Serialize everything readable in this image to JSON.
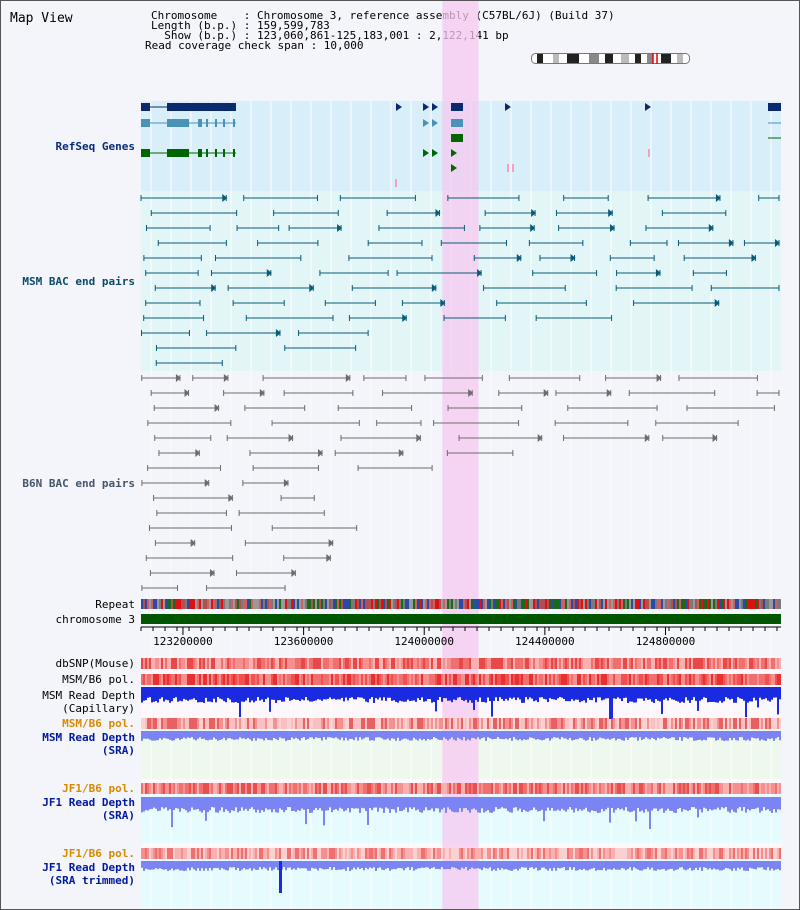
{
  "view": {
    "title": "Map View"
  },
  "info": {
    "chromosome_line": "Chromosome    : Chromosome 3, reference assembly (C57BL/6J) (Build 37)",
    "length_line": "Length (b.p.) : 159,599,783",
    "show_line": "  Show (b.p.) : 123,060,861-125,183,001 : 2,122,141 bp",
    "coverage_line": "Read coverage check span : 10,000"
  },
  "tracks": {
    "refseq": "RefSeq Genes",
    "msm_bac": "MSM BAC end pairs",
    "b6n_bac": "B6N BAC end pairs",
    "repeat": "Repeat",
    "chromosome": "chromosome 3",
    "dbsnp": "dbSNP(Mouse)",
    "msm_b6_pol": "MSM/B6 pol.",
    "msm_depth_cap_1": "MSM Read Depth",
    "msm_depth_cap_2": "(Capillary)",
    "msm_b6_pol_2": "MSM/B6 pol.",
    "msm_depth_sra_1": "MSM Read Depth",
    "msm_depth_sra_2": "(SRA)",
    "jf1_b6_pol": "JF1/B6 pol.",
    "jf1_depth_sra_1": "JF1 Read Depth",
    "jf1_depth_sra_2": "(SRA)",
    "jf1_b6_pol_2": "JF1/B6 pol.",
    "jf1_depth_trim_1": "JF1 Read Depth",
    "jf1_depth_trim_2": "(SRA trimmed)"
  },
  "axis": {
    "ticks": [
      "123200000",
      "123600000",
      "124000000",
      "124400000",
      "124800000"
    ],
    "range_start": 123060861,
    "range_end": 125183001
  },
  "highlight": {
    "start": 124060000,
    "end": 124180000,
    "color": "#f6c8f0"
  },
  "colors": {
    "refseq_bg": "#d8eef9",
    "msm_bg": "#e2f6f8",
    "b6n_bg": "#f4f4fb",
    "gene_dark": "#0b2a6e",
    "gene_mid": "#4a93b8",
    "gene_green": "#006600",
    "bac_teal": "#0b5a78",
    "bac_grey": "#6c6c6c",
    "chrom_green": "#005500",
    "depth_blue": "#1a2ae0",
    "depth_light": "#7c84f4",
    "pink_pol": "#f07a7a"
  }
}
